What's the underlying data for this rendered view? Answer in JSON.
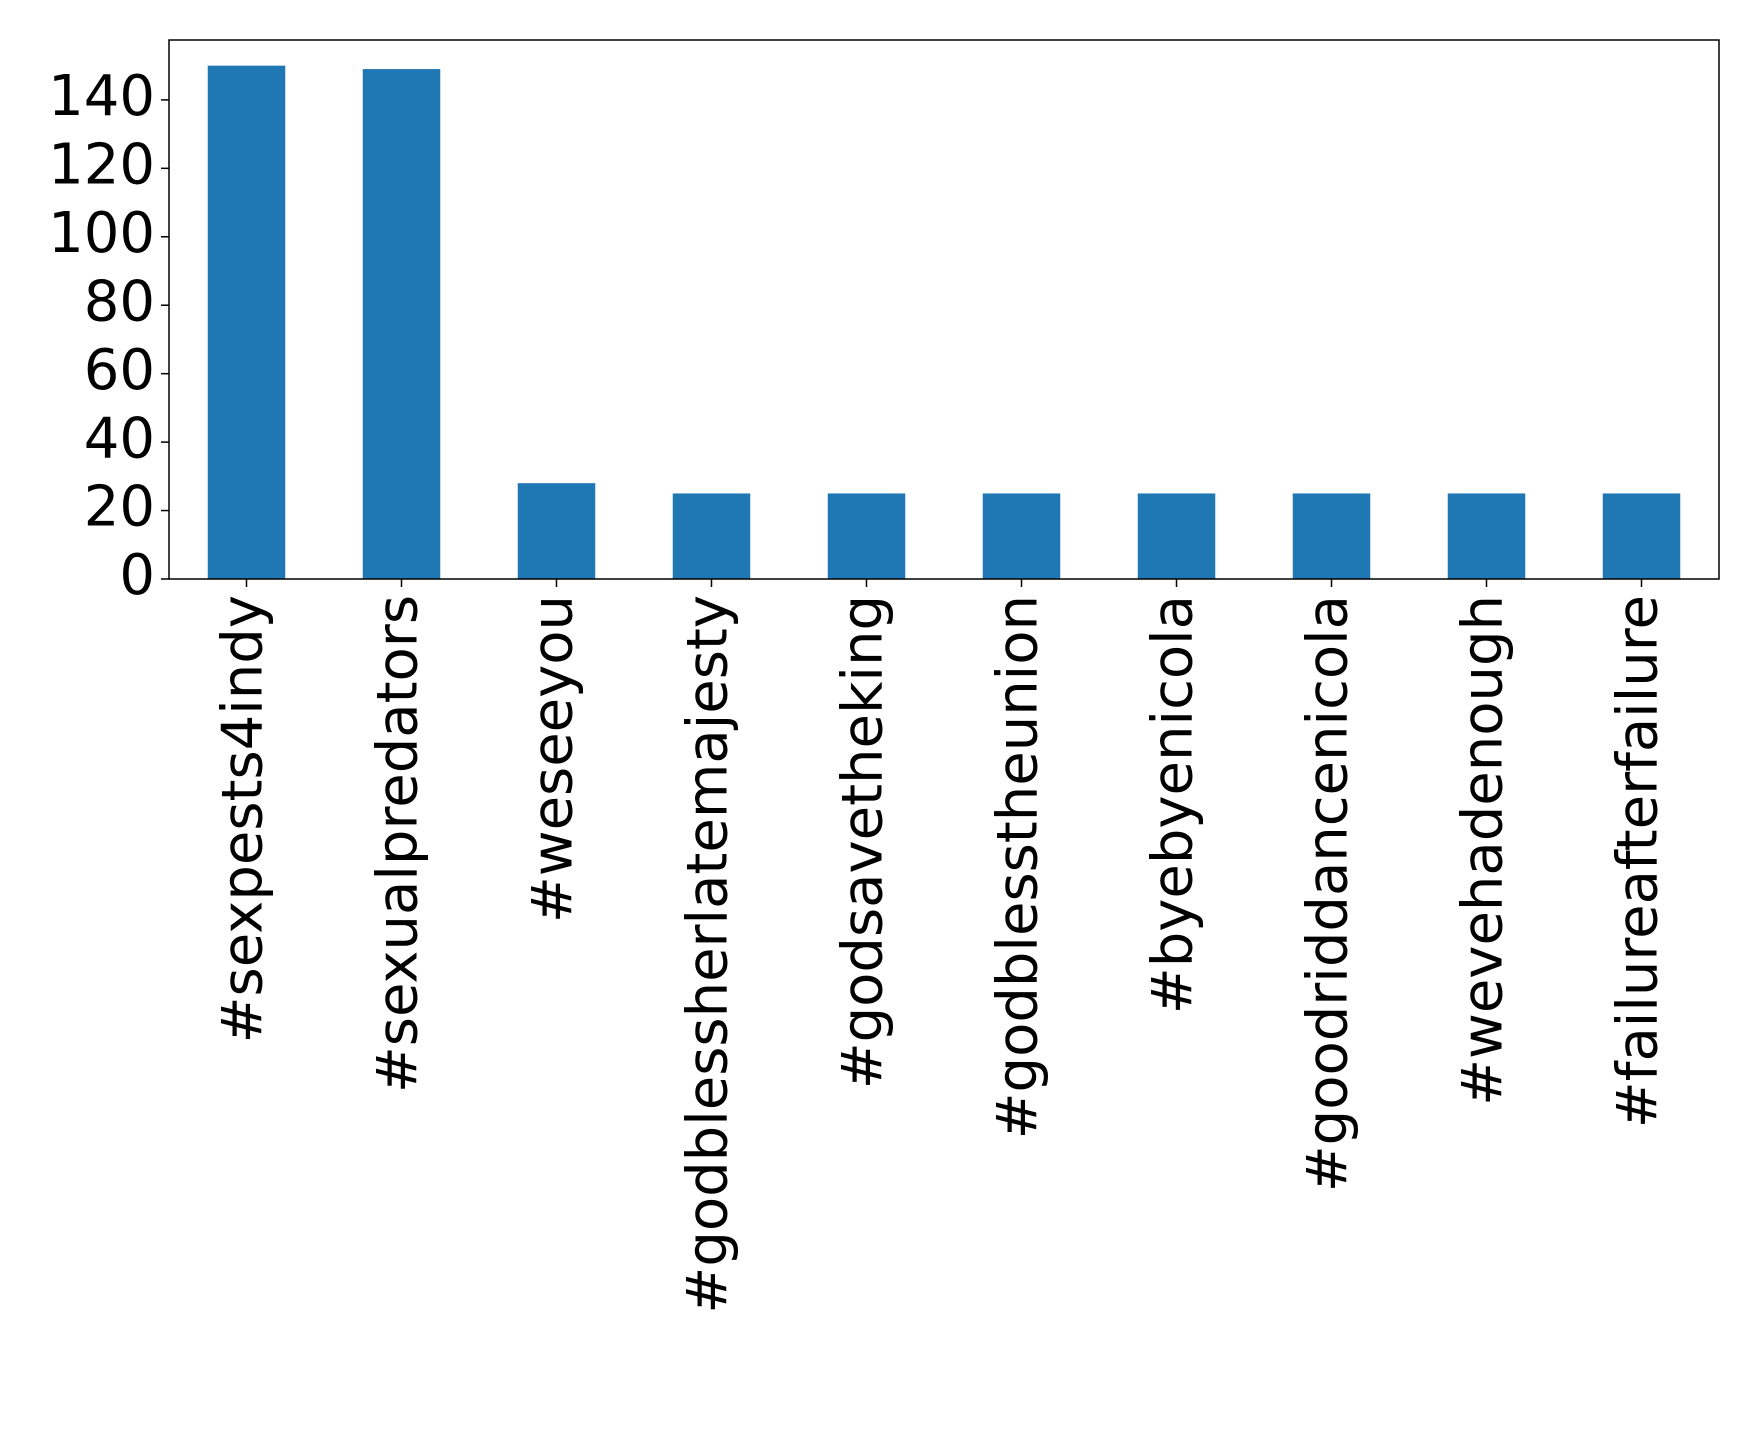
{
  "chart_data": {
    "type": "bar",
    "categories": [
      "#sexpests4indy",
      "#sexualpredators",
      "#weseeyou",
      "#godblessherlatemajesty",
      "#godsavetheking",
      "#godblesstheunion",
      "#byebyenicola",
      "#goodriddancenicola",
      "#wevehadenough",
      "#failureafterfailure"
    ],
    "values": [
      150,
      149,
      28,
      25,
      25,
      25,
      25,
      25,
      25,
      25
    ],
    "color": "#1f77b4",
    "ylim": [
      0,
      157.5
    ],
    "yticks": [
      0,
      20,
      40,
      60,
      80,
      100,
      120,
      140
    ],
    "grid": false
  }
}
